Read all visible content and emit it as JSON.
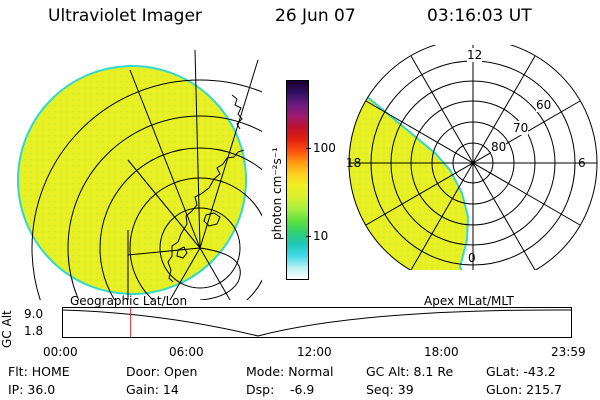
{
  "header": {
    "title": "Ultraviolet Imager",
    "date": "26 Jun 07",
    "time": "03:16:03 UT"
  },
  "colorbar": {
    "unit_label": "photon cm⁻²s⁻¹",
    "tick_labels": [
      "100",
      "10"
    ],
    "colors_top_to_bottom": [
      "#1a0030",
      "#301060",
      "#6a1a80",
      "#9c1a70",
      "#c01030",
      "#e02010",
      "#ff5010",
      "#ff9a10",
      "#ffd020",
      "#f0f020",
      "#d8f030",
      "#a8f040",
      "#60e040",
      "#30d070",
      "#20c8b8",
      "#40d8e8",
      "#b8f0f4",
      "#ffffff"
    ]
  },
  "polar_plot": {
    "mlt_labels": [
      "12",
      "18",
      "6",
      "0"
    ],
    "latitude_labels": [
      "60",
      "70",
      "80"
    ]
  },
  "timeline": {
    "left_label": "Geographic Lat/Lon",
    "right_label": "Apex MLat/MLT",
    "axis_title": "GC Alt",
    "y_ticks": [
      "9.0",
      "1.8"
    ],
    "x_ticks": [
      "00:00",
      "06:00",
      "12:00",
      "18:00",
      "23:59"
    ],
    "current_time_fraction": 0.1333
  },
  "status": {
    "row1": {
      "flt": "Flt: HOME",
      "door": "Door: Open",
      "mode": "Mode: Normal",
      "gc_alt": "GC Alt: 8.1 Re",
      "glat": "GLat: -43.2"
    },
    "row2": {
      "ip": "IP: 36.0",
      "gain": "Gain: 14",
      "dsp_label": "Dsp:",
      "dsp_value": "-6.9",
      "seq": "Seq: 39",
      "glon": "GLon: 215.7"
    }
  },
  "colors": {
    "disk_fill": "#e6f025",
    "disk_edge": "#30d8d0",
    "marker": "#e02020",
    "line": "#000000"
  }
}
